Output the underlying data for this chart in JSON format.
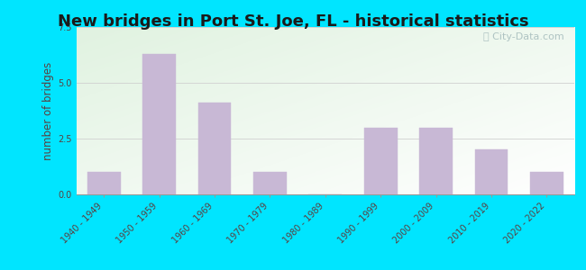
{
  "title": "New bridges in Port St. Joe, FL - historical statistics",
  "ylabel": "number of bridges",
  "categories": [
    "1940 - 1949",
    "1950 - 1959",
    "1960 - 1969",
    "1970 - 1979",
    "1980 - 1989",
    "1990 - 1999",
    "2000 - 2009",
    "2010 - 2019",
    "2020 - 2022"
  ],
  "values": [
    1.0,
    6.3,
    4.1,
    1.0,
    0,
    3.0,
    3.0,
    2.0,
    1.0
  ],
  "bar_color": "#c8b8d5",
  "bar_edge_color": "#c8b8d5",
  "ylim": [
    0,
    7.5
  ],
  "yticks": [
    0,
    2.5,
    5,
    7.5
  ],
  "background_outer": "#00e5ff",
  "grid_color": "#d0d0d0",
  "title_fontsize": 13,
  "axis_label_fontsize": 8.5,
  "tick_fontsize": 7,
  "watermark_text": "City-Data.com",
  "watermark_color": "#a8bebe",
  "text_color": "#5a4040"
}
